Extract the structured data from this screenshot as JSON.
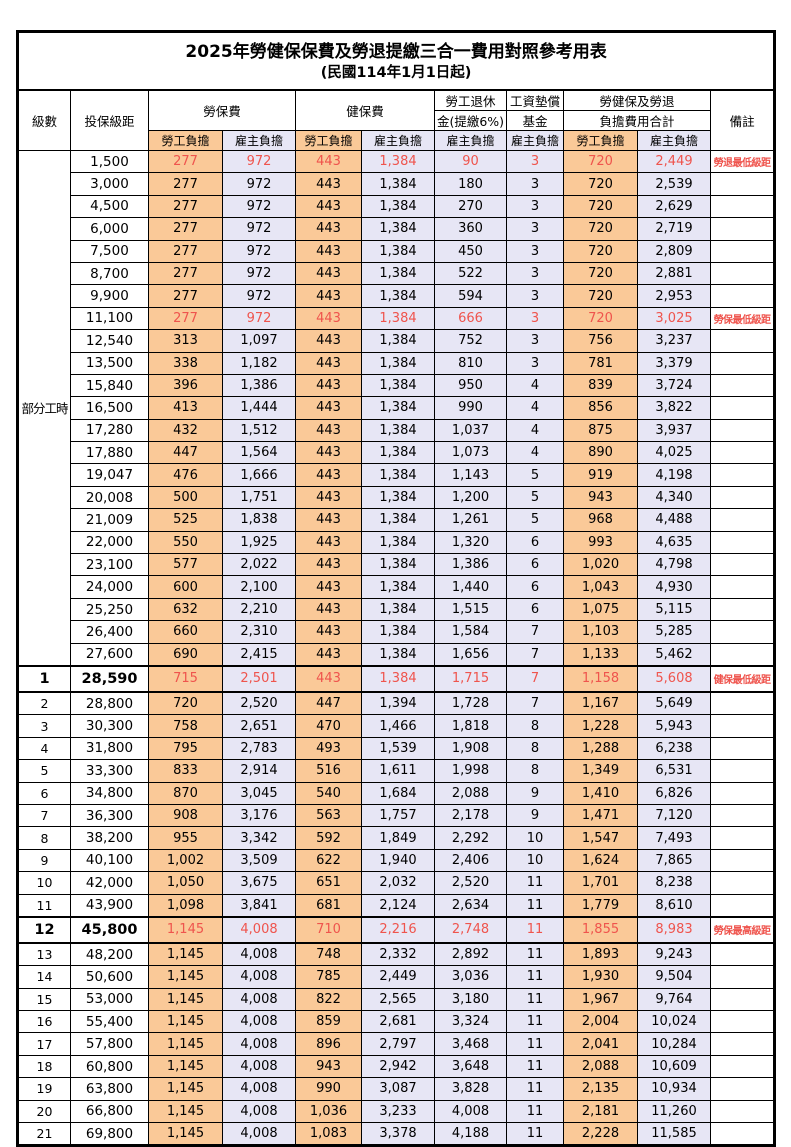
{
  "title": {
    "line1": "2025年勞健保保費及勞退提繳三合一費用對照參考用表",
    "line2": "(民國114年1月1日起)"
  },
  "colors": {
    "employee_fill": "#FAC998",
    "employer_fill": "#E7E6F5",
    "highlight_text": "#EF544D",
    "border": "#000000"
  },
  "table": {
    "header": {
      "level": "級數",
      "salary": "投保級距",
      "labor": "勞保費",
      "health": "健保費",
      "pension_l1": "勞工退休",
      "pension_l2": "金(提繳6%)",
      "wage_l1": "工資墊償",
      "wage_l2": "基金",
      "total_l1": "勞健保及勞退",
      "total_l2": "負擔費用合計",
      "note": "備註",
      "self": "勞工負擔",
      "employer": "雇主負擔"
    },
    "part_time": {
      "label": "部分工時",
      "rows": 23
    },
    "columns": [
      {
        "key": "li_e",
        "fill": "or"
      },
      {
        "key": "li_r",
        "fill": "lv"
      },
      {
        "key": "hi_e",
        "fill": "or"
      },
      {
        "key": "hi_r",
        "fill": "lv"
      },
      {
        "key": "pen",
        "fill": "lv"
      },
      {
        "key": "wf",
        "fill": "lv"
      },
      {
        "key": "tot_e",
        "fill": "or"
      },
      {
        "key": "tot_r",
        "fill": "lv"
      }
    ],
    "rows": [
      {
        "level": "",
        "salary": "1,500",
        "li_e": "277",
        "li_r": "972",
        "hi_e": "443",
        "hi_r": "1,384",
        "pen": "90",
        "wf": "3",
        "tot_e": "720",
        "tot_r": "2,449",
        "note": "勞退最低級距",
        "red": true
      },
      {
        "level": "",
        "salary": "3,000",
        "li_e": "277",
        "li_r": "972",
        "hi_e": "443",
        "hi_r": "1,384",
        "pen": "180",
        "wf": "3",
        "tot_e": "720",
        "tot_r": "2,539",
        "note": ""
      },
      {
        "level": "",
        "salary": "4,500",
        "li_e": "277",
        "li_r": "972",
        "hi_e": "443",
        "hi_r": "1,384",
        "pen": "270",
        "wf": "3",
        "tot_e": "720",
        "tot_r": "2,629",
        "note": ""
      },
      {
        "level": "",
        "salary": "6,000",
        "li_e": "277",
        "li_r": "972",
        "hi_e": "443",
        "hi_r": "1,384",
        "pen": "360",
        "wf": "3",
        "tot_e": "720",
        "tot_r": "2,719",
        "note": ""
      },
      {
        "level": "",
        "salary": "7,500",
        "li_e": "277",
        "li_r": "972",
        "hi_e": "443",
        "hi_r": "1,384",
        "pen": "450",
        "wf": "3",
        "tot_e": "720",
        "tot_r": "2,809",
        "note": ""
      },
      {
        "level": "",
        "salary": "8,700",
        "li_e": "277",
        "li_r": "972",
        "hi_e": "443",
        "hi_r": "1,384",
        "pen": "522",
        "wf": "3",
        "tot_e": "720",
        "tot_r": "2,881",
        "note": ""
      },
      {
        "level": "",
        "salary": "9,900",
        "li_e": "277",
        "li_r": "972",
        "hi_e": "443",
        "hi_r": "1,384",
        "pen": "594",
        "wf": "3",
        "tot_e": "720",
        "tot_r": "2,953",
        "note": ""
      },
      {
        "level": "",
        "salary": "11,100",
        "li_e": "277",
        "li_r": "972",
        "hi_e": "443",
        "hi_r": "1,384",
        "pen": "666",
        "wf": "3",
        "tot_e": "720",
        "tot_r": "3,025",
        "note": "勞保最低級距",
        "red": true
      },
      {
        "level": "",
        "salary": "12,540",
        "li_e": "313",
        "li_r": "1,097",
        "hi_e": "443",
        "hi_r": "1,384",
        "pen": "752",
        "wf": "3",
        "tot_e": "756",
        "tot_r": "3,237",
        "note": ""
      },
      {
        "level": "",
        "salary": "13,500",
        "li_e": "338",
        "li_r": "1,182",
        "hi_e": "443",
        "hi_r": "1,384",
        "pen": "810",
        "wf": "3",
        "tot_e": "781",
        "tot_r": "3,379",
        "note": ""
      },
      {
        "level": "",
        "salary": "15,840",
        "li_e": "396",
        "li_r": "1,386",
        "hi_e": "443",
        "hi_r": "1,384",
        "pen": "950",
        "wf": "4",
        "tot_e": "839",
        "tot_r": "3,724",
        "note": ""
      },
      {
        "level": "",
        "salary": "16,500",
        "li_e": "413",
        "li_r": "1,444",
        "hi_e": "443",
        "hi_r": "1,384",
        "pen": "990",
        "wf": "4",
        "tot_e": "856",
        "tot_r": "3,822",
        "note": ""
      },
      {
        "level": "",
        "salary": "17,280",
        "li_e": "432",
        "li_r": "1,512",
        "hi_e": "443",
        "hi_r": "1,384",
        "pen": "1,037",
        "wf": "4",
        "tot_e": "875",
        "tot_r": "3,937",
        "note": ""
      },
      {
        "level": "",
        "salary": "17,880",
        "li_e": "447",
        "li_r": "1,564",
        "hi_e": "443",
        "hi_r": "1,384",
        "pen": "1,073",
        "wf": "4",
        "tot_e": "890",
        "tot_r": "4,025",
        "note": ""
      },
      {
        "level": "",
        "salary": "19,047",
        "li_e": "476",
        "li_r": "1,666",
        "hi_e": "443",
        "hi_r": "1,384",
        "pen": "1,143",
        "wf": "5",
        "tot_e": "919",
        "tot_r": "4,198",
        "note": ""
      },
      {
        "level": "",
        "salary": "20,008",
        "li_e": "500",
        "li_r": "1,751",
        "hi_e": "443",
        "hi_r": "1,384",
        "pen": "1,200",
        "wf": "5",
        "tot_e": "943",
        "tot_r": "4,340",
        "note": ""
      },
      {
        "level": "",
        "salary": "21,009",
        "li_e": "525",
        "li_r": "1,838",
        "hi_e": "443",
        "hi_r": "1,384",
        "pen": "1,261",
        "wf": "5",
        "tot_e": "968",
        "tot_r": "4,488",
        "note": ""
      },
      {
        "level": "",
        "salary": "22,000",
        "li_e": "550",
        "li_r": "1,925",
        "hi_e": "443",
        "hi_r": "1,384",
        "pen": "1,320",
        "wf": "6",
        "tot_e": "993",
        "tot_r": "4,635",
        "note": ""
      },
      {
        "level": "",
        "salary": "23,100",
        "li_e": "577",
        "li_r": "2,022",
        "hi_e": "443",
        "hi_r": "1,384",
        "pen": "1,386",
        "wf": "6",
        "tot_e": "1,020",
        "tot_r": "4,798",
        "note": ""
      },
      {
        "level": "",
        "salary": "24,000",
        "li_e": "600",
        "li_r": "2,100",
        "hi_e": "443",
        "hi_r": "1,384",
        "pen": "1,440",
        "wf": "6",
        "tot_e": "1,043",
        "tot_r": "4,930",
        "note": ""
      },
      {
        "level": "",
        "salary": "25,250",
        "li_e": "632",
        "li_r": "2,210",
        "hi_e": "443",
        "hi_r": "1,384",
        "pen": "1,515",
        "wf": "6",
        "tot_e": "1,075",
        "tot_r": "5,115",
        "note": ""
      },
      {
        "level": "",
        "salary": "26,400",
        "li_e": "660",
        "li_r": "2,310",
        "hi_e": "443",
        "hi_r": "1,384",
        "pen": "1,584",
        "wf": "7",
        "tot_e": "1,103",
        "tot_r": "5,285",
        "note": ""
      },
      {
        "level": "",
        "salary": "27,600",
        "li_e": "690",
        "li_r": "2,415",
        "hi_e": "443",
        "hi_r": "1,384",
        "pen": "1,656",
        "wf": "7",
        "tot_e": "1,133",
        "tot_r": "5,462",
        "note": ""
      },
      {
        "level": "1",
        "salary": "28,590",
        "li_e": "715",
        "li_r": "2,501",
        "hi_e": "443",
        "hi_r": "1,384",
        "pen": "1,715",
        "wf": "7",
        "tot_e": "1,158",
        "tot_r": "5,608",
        "note": "健保最低級距",
        "red": true,
        "bold": true
      },
      {
        "level": "2",
        "salary": "28,800",
        "li_e": "720",
        "li_r": "2,520",
        "hi_e": "447",
        "hi_r": "1,394",
        "pen": "1,728",
        "wf": "7",
        "tot_e": "1,167",
        "tot_r": "5,649",
        "note": ""
      },
      {
        "level": "3",
        "salary": "30,300",
        "li_e": "758",
        "li_r": "2,651",
        "hi_e": "470",
        "hi_r": "1,466",
        "pen": "1,818",
        "wf": "8",
        "tot_e": "1,228",
        "tot_r": "5,943",
        "note": ""
      },
      {
        "level": "4",
        "salary": "31,800",
        "li_e": "795",
        "li_r": "2,783",
        "hi_e": "493",
        "hi_r": "1,539",
        "pen": "1,908",
        "wf": "8",
        "tot_e": "1,288",
        "tot_r": "6,238",
        "note": ""
      },
      {
        "level": "5",
        "salary": "33,300",
        "li_e": "833",
        "li_r": "2,914",
        "hi_e": "516",
        "hi_r": "1,611",
        "pen": "1,998",
        "wf": "8",
        "tot_e": "1,349",
        "tot_r": "6,531",
        "note": ""
      },
      {
        "level": "6",
        "salary": "34,800",
        "li_e": "870",
        "li_r": "3,045",
        "hi_e": "540",
        "hi_r": "1,684",
        "pen": "2,088",
        "wf": "9",
        "tot_e": "1,410",
        "tot_r": "6,826",
        "note": ""
      },
      {
        "level": "7",
        "salary": "36,300",
        "li_e": "908",
        "li_r": "3,176",
        "hi_e": "563",
        "hi_r": "1,757",
        "pen": "2,178",
        "wf": "9",
        "tot_e": "1,471",
        "tot_r": "7,120",
        "note": ""
      },
      {
        "level": "8",
        "salary": "38,200",
        "li_e": "955",
        "li_r": "3,342",
        "hi_e": "592",
        "hi_r": "1,849",
        "pen": "2,292",
        "wf": "10",
        "tot_e": "1,547",
        "tot_r": "7,493",
        "note": ""
      },
      {
        "level": "9",
        "salary": "40,100",
        "li_e": "1,002",
        "li_r": "3,509",
        "hi_e": "622",
        "hi_r": "1,940",
        "pen": "2,406",
        "wf": "10",
        "tot_e": "1,624",
        "tot_r": "7,865",
        "note": ""
      },
      {
        "level": "10",
        "salary": "42,000",
        "li_e": "1,050",
        "li_r": "3,675",
        "hi_e": "651",
        "hi_r": "2,032",
        "pen": "2,520",
        "wf": "11",
        "tot_e": "1,701",
        "tot_r": "8,238",
        "note": ""
      },
      {
        "level": "11",
        "salary": "43,900",
        "li_e": "1,098",
        "li_r": "3,841",
        "hi_e": "681",
        "hi_r": "2,124",
        "pen": "2,634",
        "wf": "11",
        "tot_e": "1,779",
        "tot_r": "8,610",
        "note": ""
      },
      {
        "level": "12",
        "salary": "45,800",
        "li_e": "1,145",
        "li_r": "4,008",
        "hi_e": "710",
        "hi_r": "2,216",
        "pen": "2,748",
        "wf": "11",
        "tot_e": "1,855",
        "tot_r": "8,983",
        "note": "勞保最高級距",
        "red": true,
        "bold": true
      },
      {
        "level": "13",
        "salary": "48,200",
        "li_e": "1,145",
        "li_r": "4,008",
        "hi_e": "748",
        "hi_r": "2,332",
        "pen": "2,892",
        "wf": "11",
        "tot_e": "1,893",
        "tot_r": "9,243",
        "note": ""
      },
      {
        "level": "14",
        "salary": "50,600",
        "li_e": "1,145",
        "li_r": "4,008",
        "hi_e": "785",
        "hi_r": "2,449",
        "pen": "3,036",
        "wf": "11",
        "tot_e": "1,930",
        "tot_r": "9,504",
        "note": ""
      },
      {
        "level": "15",
        "salary": "53,000",
        "li_e": "1,145",
        "li_r": "4,008",
        "hi_e": "822",
        "hi_r": "2,565",
        "pen": "3,180",
        "wf": "11",
        "tot_e": "1,967",
        "tot_r": "9,764",
        "note": ""
      },
      {
        "level": "16",
        "salary": "55,400",
        "li_e": "1,145",
        "li_r": "4,008",
        "hi_e": "859",
        "hi_r": "2,681",
        "pen": "3,324",
        "wf": "11",
        "tot_e": "2,004",
        "tot_r": "10,024",
        "note": ""
      },
      {
        "level": "17",
        "salary": "57,800",
        "li_e": "1,145",
        "li_r": "4,008",
        "hi_e": "896",
        "hi_r": "2,797",
        "pen": "3,468",
        "wf": "11",
        "tot_e": "2,041",
        "tot_r": "10,284",
        "note": ""
      },
      {
        "level": "18",
        "salary": "60,800",
        "li_e": "1,145",
        "li_r": "4,008",
        "hi_e": "943",
        "hi_r": "2,942",
        "pen": "3,648",
        "wf": "11",
        "tot_e": "2,088",
        "tot_r": "10,609",
        "note": ""
      },
      {
        "level": "19",
        "salary": "63,800",
        "li_e": "1,145",
        "li_r": "4,008",
        "hi_e": "990",
        "hi_r": "3,087",
        "pen": "3,828",
        "wf": "11",
        "tot_e": "2,135",
        "tot_r": "10,934",
        "note": ""
      },
      {
        "level": "20",
        "salary": "66,800",
        "li_e": "1,145",
        "li_r": "4,008",
        "hi_e": "1,036",
        "hi_r": "3,233",
        "pen": "4,008",
        "wf": "11",
        "tot_e": "2,181",
        "tot_r": "11,260",
        "note": ""
      },
      {
        "level": "21",
        "salary": "69,800",
        "li_e": "1,145",
        "li_r": "4,008",
        "hi_e": "1,083",
        "hi_r": "3,378",
        "pen": "4,188",
        "wf": "11",
        "tot_e": "2,228",
        "tot_r": "11,585",
        "note": ""
      }
    ]
  }
}
